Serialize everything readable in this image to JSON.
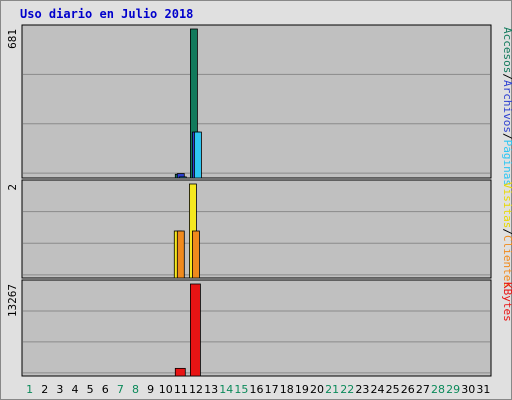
{
  "title": "Uso diario en Julio 2018",
  "chart_data": {
    "type": "bar",
    "title": "Uso diario en Julio 2018",
    "categories": [
      "1",
      "2",
      "3",
      "4",
      "5",
      "6",
      "7",
      "8",
      "9",
      "10",
      "11",
      "12",
      "13",
      "14",
      "15",
      "16",
      "17",
      "18",
      "19",
      "20",
      "21",
      "22",
      "23",
      "24",
      "25",
      "26",
      "27",
      "28",
      "29",
      "30",
      "31"
    ],
    "weekend_categories": [
      "1",
      "7",
      "8",
      "14",
      "15",
      "21",
      "22",
      "28",
      "29"
    ],
    "colors": {
      "weekday_label": "#000000",
      "weekend_label": "#0b8a5a",
      "plot_bg": "#c0c0c0",
      "grid": "#8a8a8a",
      "frame_bg": "#e0e0e0"
    },
    "panels": [
      {
        "id": "hits",
        "max_label": "681",
        "ylim": [
          0,
          681
        ],
        "series": [
          {
            "name": "Accesos",
            "color": "#127a5c",
            "values": {
              "11": 17,
              "12": 681
            }
          },
          {
            "name": "Archivos",
            "color": "#2c3fd1",
            "values": {
              "11": 20,
              "12": 210
            }
          },
          {
            "name": "Páginas",
            "color": "#2ec6f2",
            "values": {
              "11": 5,
              "12": 210
            }
          }
        ],
        "legend": [
          "Accesos",
          "/",
          "Archivos",
          "/",
          "Páginas"
        ]
      },
      {
        "id": "visits",
        "max_label": "2",
        "ylim": [
          0,
          2
        ],
        "series": [
          {
            "name": "Visitas",
            "color": "#f5e81e",
            "values": {
              "11": 1,
              "12": 2
            }
          },
          {
            "name": "Clientes",
            "color": "#f08a1c",
            "values": {
              "11": 1,
              "12": 1
            }
          }
        ],
        "legend": [
          "Visitas",
          "/",
          "Clientes"
        ]
      },
      {
        "id": "kbytes",
        "max_label": "13267",
        "ylim": [
          0,
          13267
        ],
        "series": [
          {
            "name": "KBytes",
            "color": "#e81414",
            "values": {
              "11": 1100,
              "12": 13267
            }
          }
        ],
        "legend": [
          "KBytes"
        ]
      }
    ],
    "legend_colors": {
      "Accesos": "#127a5c",
      "Archivos": "#2c3fd1",
      "Páginas": "#2ec6f2",
      "Visitas": "#e8d800",
      "Clientes": "#f08a1c",
      "KBytes": "#e81414",
      "/": "#000000"
    },
    "grid": true
  }
}
